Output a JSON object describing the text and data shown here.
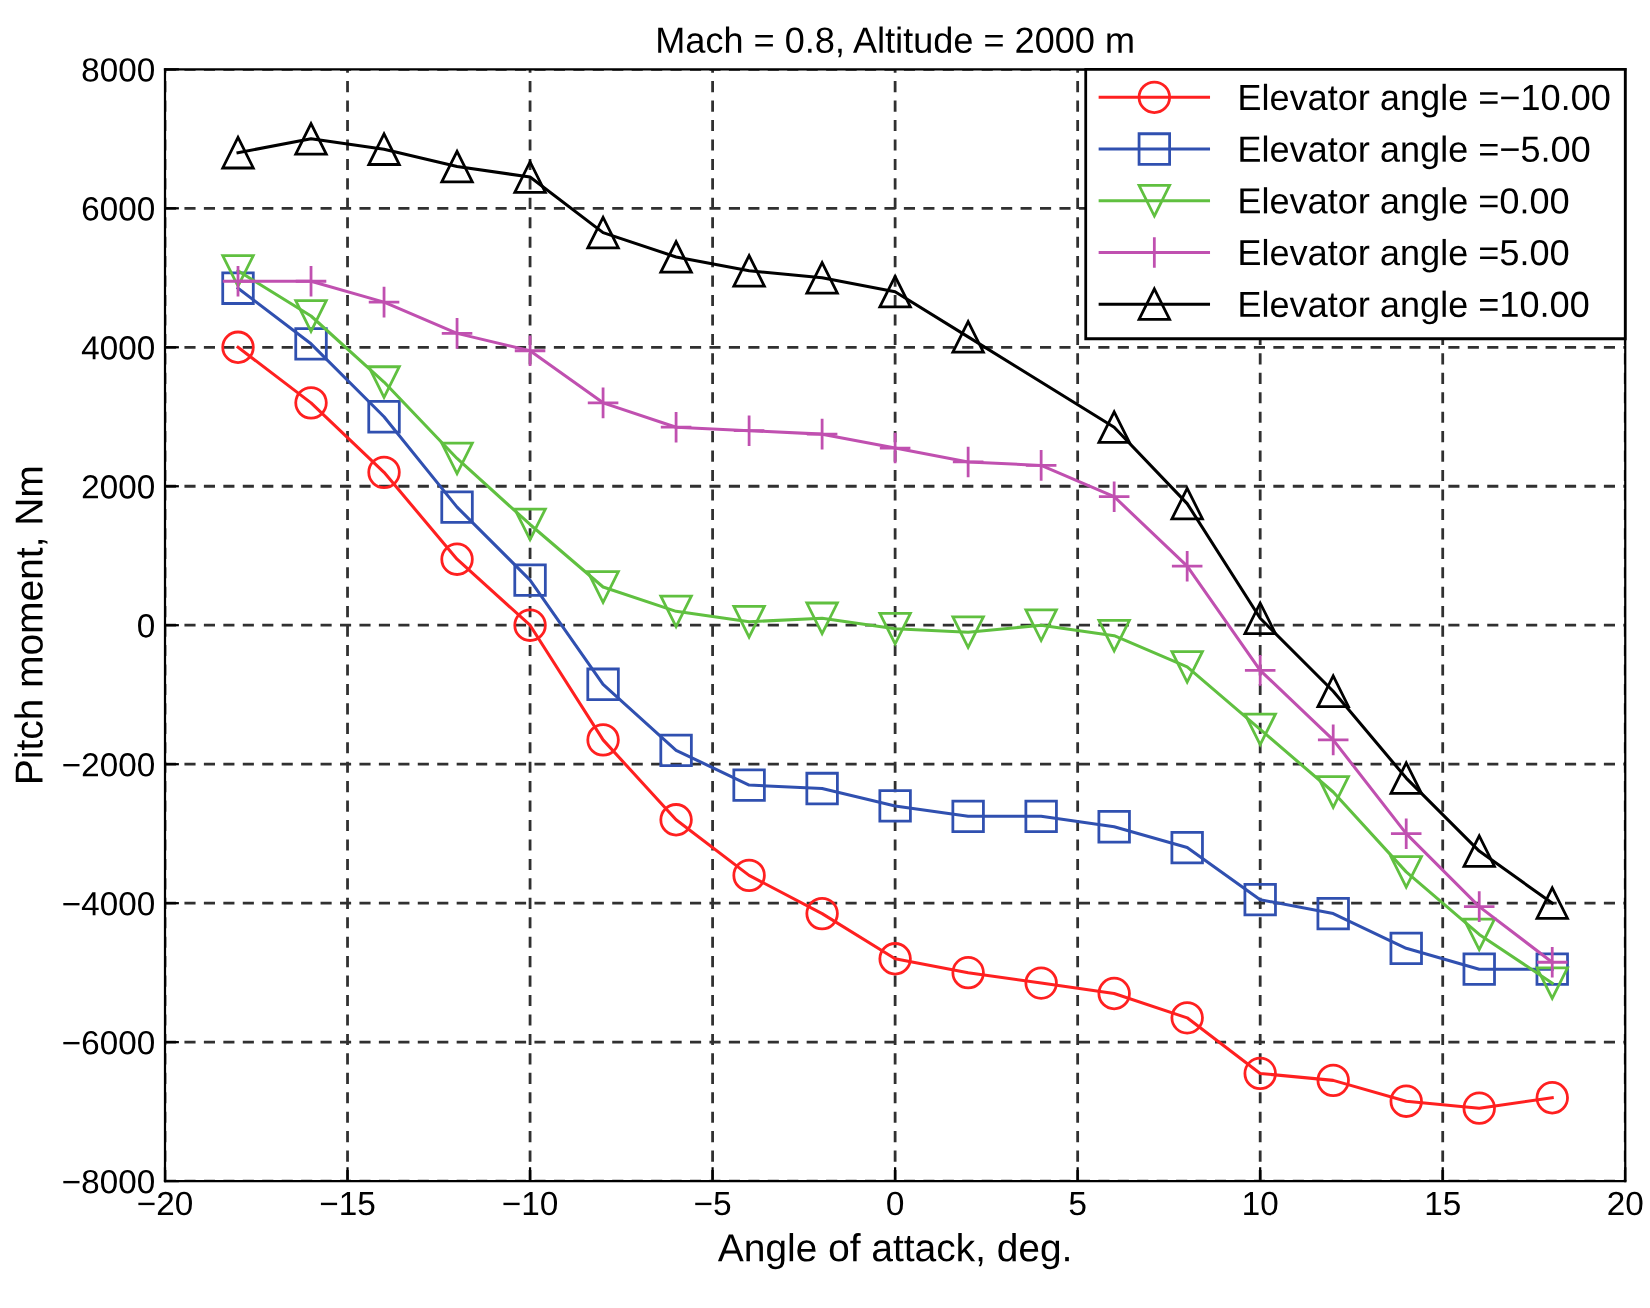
{
  "chart_data": {
    "type": "line",
    "title": "Mach = 0.8, Altitude = 2000 m",
    "xlabel": "Angle of attack, deg.",
    "ylabel": "Pitch moment, Nm",
    "x": [
      -18,
      -16,
      -14,
      -12,
      -10,
      -8,
      -6,
      -4,
      -2,
      0,
      2,
      4,
      6,
      8,
      10,
      12,
      14,
      16,
      18
    ],
    "series": [
      {
        "name": "Elevator angle =−10.00",
        "color": "#ff2020",
        "marker": "circle",
        "values": [
          4000,
          3200,
          2200,
          950,
          0,
          -1650,
          -2800,
          -3600,
          -4150,
          -4800,
          -5000,
          -5150,
          -5300,
          -5650,
          -6450,
          -6550,
          -6850,
          -6950,
          -6800
        ]
      },
      {
        "name": "Elevator angle =−5.00",
        "color": "#3050b0",
        "marker": "square",
        "values": [
          4850,
          4050,
          3000,
          1700,
          650,
          -850,
          -1800,
          -2300,
          -2350,
          -2600,
          -2750,
          -2750,
          -2900,
          -3200,
          -3950,
          -4150,
          -4650,
          -4950,
          -4950
        ]
      },
      {
        "name": "Elevator angle =0.00",
        "color": "#60c040",
        "marker": "triangle_down",
        "values": [
          5100,
          4450,
          3500,
          2400,
          1450,
          550,
          200,
          50,
          100,
          -50,
          -100,
          0,
          -150,
          -600,
          -1500,
          -2400,
          -3550,
          -4450,
          -5150
        ]
      },
      {
        "name": "Elevator angle =5.00",
        "color": "#c050b0",
        "marker": "plus",
        "values": [
          4950,
          4950,
          4650,
          4200,
          3950,
          3200,
          2850,
          2800,
          2750,
          2550,
          2350,
          2300,
          1850,
          850,
          -650,
          -1650,
          -3000,
          -4050,
          -4850
        ]
      },
      {
        "name": "Elevator angle =10.00",
        "color": "#000000",
        "marker": "triangle",
        "values": [
          6800,
          7000,
          6850,
          6600,
          6450,
          5650,
          5300,
          5100,
          5000,
          4800,
          4150,
          null,
          2850,
          1750,
          100,
          -950,
          -2200,
          -3250,
          -4000
        ]
      }
    ],
    "xlim": [
      -20,
      20
    ],
    "ylim": [
      -8000,
      8000
    ],
    "xticks": [
      {
        "value": -20,
        "label": "−20"
      },
      {
        "value": -15,
        "label": "−15"
      },
      {
        "value": -10,
        "label": "−10"
      },
      {
        "value": -5,
        "label": "−5"
      },
      0,
      5,
      10,
      15,
      20
    ],
    "yticks": [
      {
        "value": -8000,
        "label": "−8000"
      },
      {
        "value": -6000,
        "label": "−6000"
      },
      {
        "value": -4000,
        "label": "−4000"
      },
      {
        "value": -2000,
        "label": "−2000"
      },
      0,
      2000,
      4000,
      6000,
      8000
    ],
    "grid": true,
    "legend": "top right",
    "line_style": "solid"
  }
}
